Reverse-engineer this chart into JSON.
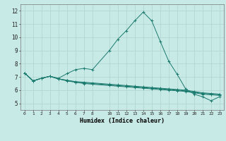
{
  "xlabel": "Humidex (Indice chaleur)",
  "background_color": "#c8eae6",
  "grid_color": "#aed4ce",
  "line_color": "#1a7a6e",
  "xlim": [
    -0.5,
    23.5
  ],
  "ylim": [
    4.5,
    12.5
  ],
  "xticks": [
    0,
    1,
    2,
    3,
    4,
    5,
    6,
    7,
    8,
    10,
    11,
    12,
    13,
    14,
    15,
    16,
    17,
    18,
    19,
    20,
    21,
    22,
    23
  ],
  "yticks": [
    5,
    6,
    7,
    8,
    9,
    10,
    11,
    12
  ],
  "series1_x": [
    0,
    1,
    2,
    3,
    4,
    5,
    6,
    7,
    8,
    10,
    11,
    12,
    13,
    14,
    15,
    16,
    17,
    18,
    19,
    20,
    21,
    22,
    23
  ],
  "series1_y": [
    7.3,
    6.7,
    6.9,
    7.05,
    6.9,
    7.25,
    7.55,
    7.65,
    7.55,
    9.0,
    9.85,
    10.5,
    11.25,
    11.9,
    11.25,
    9.7,
    8.2,
    7.2,
    6.1,
    5.7,
    5.5,
    5.2,
    5.5
  ],
  "series2_x": [
    0,
    1,
    2,
    3,
    4,
    5,
    6,
    7,
    8,
    10,
    11,
    12,
    13,
    14,
    15,
    16,
    17,
    18,
    19,
    20,
    21,
    22,
    23
  ],
  "series2_y": [
    7.3,
    6.7,
    6.9,
    7.05,
    6.85,
    6.75,
    6.65,
    6.6,
    6.55,
    6.45,
    6.4,
    6.35,
    6.3,
    6.25,
    6.2,
    6.15,
    6.1,
    6.05,
    6.0,
    5.9,
    5.8,
    5.75,
    5.7
  ],
  "series3_x": [
    0,
    1,
    2,
    3,
    4,
    5,
    6,
    7,
    8,
    10,
    11,
    12,
    13,
    14,
    15,
    16,
    17,
    18,
    19,
    20,
    21,
    22,
    23
  ],
  "series3_y": [
    7.3,
    6.7,
    6.9,
    7.05,
    6.85,
    6.75,
    6.6,
    6.55,
    6.5,
    6.4,
    6.35,
    6.3,
    6.25,
    6.2,
    6.15,
    6.1,
    6.05,
    6.0,
    5.95,
    5.85,
    5.75,
    5.7,
    5.65
  ],
  "series4_x": [
    0,
    1,
    2,
    3,
    4,
    5,
    6,
    7,
    8,
    10,
    11,
    12,
    13,
    14,
    15,
    16,
    17,
    18,
    19,
    20,
    21,
    22,
    23
  ],
  "series4_y": [
    7.3,
    6.7,
    6.9,
    7.05,
    6.85,
    6.7,
    6.6,
    6.5,
    6.45,
    6.35,
    6.3,
    6.25,
    6.2,
    6.15,
    6.1,
    6.05,
    6.0,
    5.95,
    5.9,
    5.8,
    5.7,
    5.65,
    5.6
  ]
}
